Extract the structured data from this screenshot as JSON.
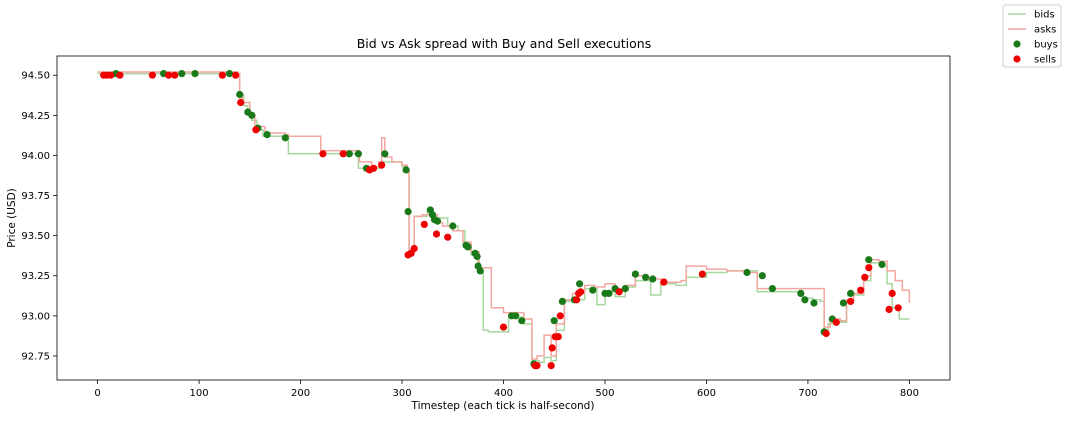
{
  "chart_data": {
    "type": "line",
    "title": "Bid vs Ask spread with Buy and Sell executions",
    "xlabel": "Timestep (each tick is half-second)",
    "ylabel": "Price (USD)",
    "xlim": [
      -40,
      840
    ],
    "ylim": [
      92.6,
      94.62
    ],
    "x_ticks": [
      0,
      100,
      200,
      300,
      400,
      500,
      600,
      700,
      800
    ],
    "y_ticks": [
      92.75,
      93.0,
      93.25,
      93.5,
      93.75,
      94.0,
      94.25,
      94.5
    ],
    "y_tick_labels": [
      "92.75",
      "93.00",
      "93.25",
      "93.50",
      "93.75",
      "94.00",
      "94.25",
      "94.50"
    ],
    "grid": false,
    "legend_position": "outside-top-right",
    "colors": {
      "bids": "#a8d8a0",
      "asks": "#f4a7a0",
      "buys": "#1a7a1a",
      "sells": "#ee0000"
    },
    "legend": [
      {
        "label": "bids",
        "kind": "line",
        "color_key": "bids"
      },
      {
        "label": "asks",
        "kind": "line",
        "color_key": "asks"
      },
      {
        "label": "buys",
        "kind": "dot",
        "color_key": "buys"
      },
      {
        "label": "sells",
        "kind": "dot",
        "color_key": "sells"
      }
    ],
    "series": [
      {
        "name": "bids",
        "kind": "line",
        "points": [
          [
            0,
            94.51
          ],
          [
            138,
            94.51
          ],
          [
            140,
            94.38
          ],
          [
            144,
            94.31
          ],
          [
            148,
            94.26
          ],
          [
            152,
            94.22
          ],
          [
            157,
            94.16
          ],
          [
            163,
            94.12
          ],
          [
            185,
            94.11
          ],
          [
            188,
            94.01
          ],
          [
            253,
            94.01
          ],
          [
            257,
            93.92
          ],
          [
            275,
            93.92
          ],
          [
            280,
            93.96
          ],
          [
            300,
            93.93
          ],
          [
            305,
            93.9
          ],
          [
            307,
            93.4
          ],
          [
            312,
            93.62
          ],
          [
            325,
            93.67
          ],
          [
            330,
            93.61
          ],
          [
            345,
            93.56
          ],
          [
            355,
            93.53
          ],
          [
            362,
            93.45
          ],
          [
            368,
            93.38
          ],
          [
            375,
            93.28
          ],
          [
            380,
            92.91
          ],
          [
            385,
            92.9
          ],
          [
            395,
            92.9
          ],
          [
            405,
            92.99
          ],
          [
            420,
            92.95
          ],
          [
            428,
            92.72
          ],
          [
            435,
            92.71
          ],
          [
            440,
            92.74
          ],
          [
            447,
            92.72
          ],
          [
            452,
            92.91
          ],
          [
            460,
            93.09
          ],
          [
            470,
            93.1
          ],
          [
            480,
            93.17
          ],
          [
            492,
            93.07
          ],
          [
            500,
            93.15
          ],
          [
            510,
            93.12
          ],
          [
            520,
            93.18
          ],
          [
            530,
            93.22
          ],
          [
            545,
            93.13
          ],
          [
            555,
            93.2
          ],
          [
            570,
            93.19
          ],
          [
            580,
            93.24
          ],
          [
            600,
            93.27
          ],
          [
            620,
            93.28
          ],
          [
            650,
            93.15
          ],
          [
            690,
            93.15
          ],
          [
            695,
            93.11
          ],
          [
            705,
            93.1
          ],
          [
            712,
            93.09
          ],
          [
            716,
            92.91
          ],
          [
            720,
            92.95
          ],
          [
            730,
            92.96
          ],
          [
            738,
            93.1
          ],
          [
            745,
            93.13
          ],
          [
            755,
            93.22
          ],
          [
            762,
            93.33
          ],
          [
            772,
            93.31
          ],
          [
            778,
            93.2
          ],
          [
            783,
            93.05
          ],
          [
            790,
            92.98
          ],
          [
            800,
            92.98
          ]
        ]
      },
      {
        "name": "asks",
        "kind": "line",
        "points": [
          [
            0,
            94.52
          ],
          [
            132,
            94.52
          ],
          [
            138,
            94.51
          ],
          [
            140,
            94.36
          ],
          [
            143,
            94.33
          ],
          [
            150,
            94.25
          ],
          [
            155,
            94.18
          ],
          [
            165,
            94.14
          ],
          [
            185,
            94.13
          ],
          [
            188,
            94.12
          ],
          [
            210,
            94.12
          ],
          [
            220,
            94.03
          ],
          [
            255,
            94.03
          ],
          [
            258,
            93.96
          ],
          [
            270,
            93.93
          ],
          [
            277,
            93.96
          ],
          [
            280,
            94.11
          ],
          [
            283,
            93.99
          ],
          [
            290,
            93.96
          ],
          [
            300,
            93.94
          ],
          [
            305,
            93.9
          ],
          [
            307,
            93.4
          ],
          [
            312,
            93.62
          ],
          [
            320,
            93.63
          ],
          [
            330,
            93.63
          ],
          [
            335,
            93.58
          ],
          [
            340,
            93.56
          ],
          [
            350,
            93.53
          ],
          [
            360,
            93.46
          ],
          [
            368,
            93.4
          ],
          [
            376,
            93.3
          ],
          [
            382,
            93.3
          ],
          [
            388,
            93.05
          ],
          [
            400,
            93.02
          ],
          [
            410,
            93.02
          ],
          [
            420,
            92.98
          ],
          [
            428,
            92.73
          ],
          [
            433,
            92.75
          ],
          [
            440,
            92.88
          ],
          [
            447,
            92.75
          ],
          [
            452,
            92.95
          ],
          [
            460,
            93.1
          ],
          [
            468,
            93.14
          ],
          [
            480,
            93.19
          ],
          [
            490,
            93.18
          ],
          [
            500,
            93.2
          ],
          [
            510,
            93.17
          ],
          [
            520,
            93.19
          ],
          [
            530,
            93.25
          ],
          [
            540,
            93.23
          ],
          [
            560,
            93.21
          ],
          [
            575,
            93.22
          ],
          [
            580,
            93.31
          ],
          [
            600,
            93.29
          ],
          [
            620,
            93.28
          ],
          [
            640,
            93.27
          ],
          [
            650,
            93.17
          ],
          [
            700,
            93.17
          ],
          [
            712,
            93.17
          ],
          [
            716,
            92.93
          ],
          [
            722,
            92.98
          ],
          [
            732,
            92.97
          ],
          [
            738,
            93.1
          ],
          [
            745,
            93.14
          ],
          [
            755,
            93.25
          ],
          [
            762,
            93.35
          ],
          [
            770,
            93.34
          ],
          [
            778,
            93.28
          ],
          [
            786,
            93.22
          ],
          [
            793,
            93.16
          ],
          [
            800,
            93.08
          ]
        ]
      },
      {
        "name": "buys",
        "kind": "scatter",
        "points": [
          [
            18,
            94.51
          ],
          [
            65,
            94.51
          ],
          [
            83,
            94.51
          ],
          [
            96,
            94.51
          ],
          [
            130,
            94.51
          ],
          [
            140,
            94.38
          ],
          [
            148,
            94.27
          ],
          [
            152,
            94.25
          ],
          [
            158,
            94.17
          ],
          [
            167,
            94.13
          ],
          [
            185,
            94.11
          ],
          [
            248,
            94.01
          ],
          [
            257,
            94.01
          ],
          [
            265,
            93.92
          ],
          [
            283,
            94.01
          ],
          [
            304,
            93.91
          ],
          [
            306,
            93.65
          ],
          [
            328,
            93.66
          ],
          [
            330,
            93.63
          ],
          [
            332,
            93.6
          ],
          [
            335,
            93.59
          ],
          [
            350,
            93.56
          ],
          [
            363,
            93.44
          ],
          [
            365,
            93.43
          ],
          [
            372,
            93.39
          ],
          [
            374,
            93.37
          ],
          [
            375,
            93.31
          ],
          [
            377,
            93.28
          ],
          [
            408,
            93.0
          ],
          [
            412,
            93.0
          ],
          [
            418,
            92.97
          ],
          [
            430,
            92.7
          ],
          [
            450,
            92.97
          ],
          [
            458,
            93.09
          ],
          [
            470,
            93.1
          ],
          [
            475,
            93.2
          ],
          [
            488,
            93.16
          ],
          [
            500,
            93.14
          ],
          [
            504,
            93.14
          ],
          [
            510,
            93.17
          ],
          [
            520,
            93.17
          ],
          [
            530,
            93.26
          ],
          [
            540,
            93.24
          ],
          [
            547,
            93.23
          ],
          [
            640,
            93.27
          ],
          [
            655,
            93.25
          ],
          [
            665,
            93.17
          ],
          [
            693,
            93.14
          ],
          [
            697,
            93.1
          ],
          [
            706,
            93.08
          ],
          [
            716,
            92.9
          ],
          [
            724,
            92.98
          ],
          [
            735,
            93.08
          ],
          [
            742,
            93.14
          ],
          [
            760,
            93.35
          ],
          [
            773,
            93.32
          ]
        ]
      },
      {
        "name": "sells",
        "kind": "scatter",
        "points": [
          [
            6,
            94.5
          ],
          [
            9,
            94.5
          ],
          [
            13,
            94.5
          ],
          [
            22,
            94.5
          ],
          [
            54,
            94.5
          ],
          [
            70,
            94.5
          ],
          [
            76,
            94.5
          ],
          [
            123,
            94.5
          ],
          [
            136,
            94.5
          ],
          [
            141,
            94.33
          ],
          [
            156,
            94.16
          ],
          [
            222,
            94.01
          ],
          [
            242,
            94.01
          ],
          [
            268,
            93.91
          ],
          [
            272,
            93.92
          ],
          [
            280,
            93.94
          ],
          [
            306,
            93.38
          ],
          [
            309,
            93.39
          ],
          [
            312,
            93.42
          ],
          [
            322,
            93.57
          ],
          [
            334,
            93.51
          ],
          [
            345,
            93.49
          ],
          [
            400,
            92.93
          ],
          [
            431,
            92.69
          ],
          [
            433,
            92.69
          ],
          [
            447,
            92.69
          ],
          [
            448,
            92.8
          ],
          [
            451,
            92.87
          ],
          [
            454,
            92.87
          ],
          [
            456,
            93.0
          ],
          [
            472,
            93.1
          ],
          [
            474,
            93.14
          ],
          [
            476,
            93.15
          ],
          [
            514,
            93.15
          ],
          [
            558,
            93.21
          ],
          [
            596,
            93.26
          ],
          [
            718,
            92.89
          ],
          [
            728,
            92.96
          ],
          [
            742,
            93.09
          ],
          [
            752,
            93.16
          ],
          [
            756,
            93.24
          ],
          [
            760,
            93.3
          ],
          [
            780,
            93.04
          ],
          [
            783,
            93.14
          ],
          [
            789,
            93.05
          ]
        ]
      }
    ]
  }
}
